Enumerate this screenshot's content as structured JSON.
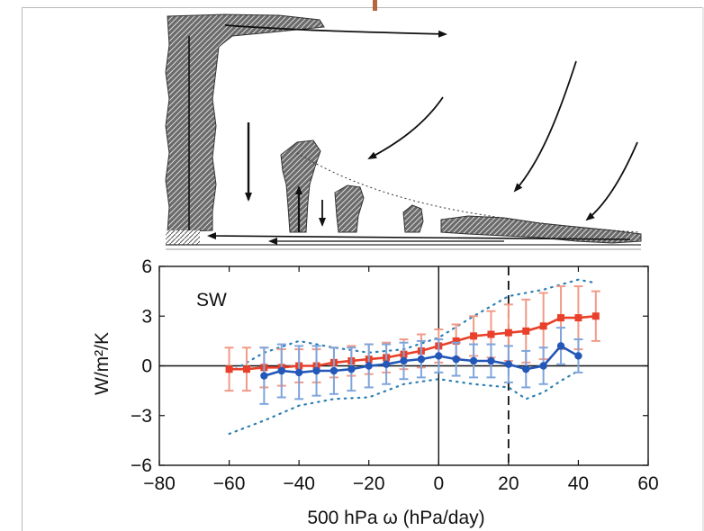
{
  "chart_data": {
    "type": "line",
    "panel_label": "SW",
    "xlabel": "500 hPa ω (hPa/day)",
    "ylabel": "W/m²/K",
    "xlim": [
      -80,
      60
    ],
    "ylim": [
      -6,
      6
    ],
    "xticks": [
      -80,
      -60,
      -40,
      -20,
      0,
      20,
      40,
      60
    ],
    "yticks": [
      -6,
      -3,
      0,
      3,
      6
    ],
    "reference_lines": [
      {
        "axis": "y",
        "value": 0,
        "style": "solid"
      },
      {
        "axis": "x",
        "value": 0,
        "style": "solid"
      },
      {
        "axis": "x",
        "value": 20,
        "style": "dashed"
      }
    ],
    "series": [
      {
        "color": "#e8402a",
        "marker": "square",
        "x": [
          -60,
          -55,
          -50,
          -45,
          -40,
          -35,
          -30,
          -25,
          -20,
          -15,
          -10,
          -5,
          0,
          5,
          10,
          15,
          20,
          25,
          30,
          35,
          40,
          45
        ],
        "y": [
          -0.2,
          -0.2,
          -0.1,
          -0.1,
          0.0,
          0.0,
          0.2,
          0.3,
          0.4,
          0.5,
          0.7,
          0.9,
          1.2,
          1.5,
          1.8,
          1.9,
          2.0,
          2.1,
          2.4,
          2.9,
          2.9,
          3.0
        ],
        "err": [
          1.3,
          1.3,
          1.2,
          1.1,
          1.0,
          1.0,
          0.9,
          0.9,
          0.9,
          0.9,
          0.9,
          1.0,
          1.0,
          1.0,
          1.2,
          1.4,
          1.7,
          1.9,
          2.0,
          1.9,
          1.9,
          1.5
        ]
      },
      {
        "color": "#2357b8",
        "marker": "circle",
        "x": [
          -50,
          -45,
          -40,
          -35,
          -30,
          -25,
          -20,
          -15,
          -10,
          -5,
          0,
          5,
          10,
          15,
          20,
          25,
          30,
          35,
          40
        ],
        "y": [
          -0.6,
          -0.3,
          -0.4,
          -0.3,
          -0.3,
          -0.2,
          0.0,
          0.1,
          0.3,
          0.4,
          0.6,
          0.4,
          0.3,
          0.3,
          0.1,
          -0.2,
          0.0,
          1.2,
          0.6
        ],
        "err": [
          1.7,
          1.6,
          1.6,
          1.5,
          1.4,
          1.3,
          1.3,
          1.2,
          1.1,
          1.1,
          1.0,
          1.0,
          1.0,
          1.0,
          1.1,
          1.1,
          1.1,
          1.1,
          1.0
        ]
      }
    ],
    "spread_bounds": {
      "color": "#2e7fb3",
      "upper_x": [
        -60,
        -50,
        -40,
        -30,
        -20,
        -10,
        0,
        10,
        20,
        30,
        40,
        45
      ],
      "upper_y": [
        -0.4,
        0.8,
        1.5,
        1.1,
        0.8,
        1.0,
        1.7,
        3.0,
        4.2,
        4.6,
        5.2,
        5.0
      ],
      "lower_x": [
        -60,
        -50,
        -40,
        -30,
        -20,
        -10,
        0,
        10,
        20,
        25,
        30,
        35,
        40
      ],
      "lower_y": [
        -4.1,
        -3.3,
        -2.4,
        -2.0,
        -1.9,
        -1.1,
        -0.8,
        -1.1,
        -1.3,
        -2.0,
        -1.6,
        -0.9,
        -0.3
      ]
    }
  }
}
